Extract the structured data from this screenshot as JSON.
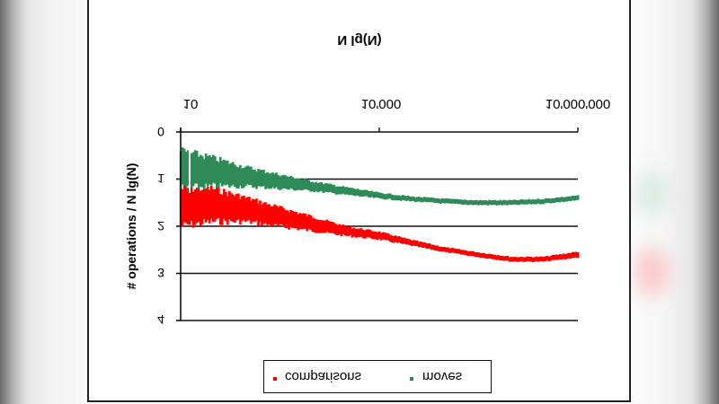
{
  "chart_data": {
    "type": "line",
    "orientation_note": "image rendered vertically flipped",
    "title": "N lg(N)",
    "xlabel": "",
    "ylabel": "# operations / N lg(N)",
    "x_scale": "log",
    "x_ticks": [
      "10",
      "10'000",
      "10'000'000"
    ],
    "y_ticks": [
      "0",
      "1",
      "2",
      "3",
      "4"
    ],
    "ylim": [
      0,
      4
    ],
    "xlim": [
      10,
      10000000
    ],
    "grid": {
      "horizontal": true,
      "vertical": false
    },
    "legend_position": "bottom",
    "x": [
      10,
      30,
      100,
      300,
      1000,
      3000,
      10000,
      30000,
      100000,
      300000,
      1000000,
      3000000,
      10000000
    ],
    "series": [
      {
        "name": "comparisons",
        "color": "#ff0000",
        "values": [
          1.6,
          1.55,
          1.65,
          1.8,
          1.95,
          2.1,
          2.2,
          2.35,
          2.5,
          2.6,
          2.7,
          2.7,
          2.6
        ],
        "spread": [
          0.4,
          0.35,
          0.25,
          0.2,
          0.15,
          0.1,
          0.08,
          0.06,
          0.05,
          0.05,
          0.05,
          0.05,
          0.06
        ]
      },
      {
        "name": "moves",
        "color": "#2e8b57",
        "values": [
          0.8,
          0.85,
          0.95,
          1.05,
          1.15,
          1.25,
          1.35,
          1.42,
          1.47,
          1.5,
          1.5,
          1.47,
          1.4
        ],
        "spread": [
          0.4,
          0.3,
          0.2,
          0.15,
          0.1,
          0.08,
          0.06,
          0.05,
          0.05,
          0.05,
          0.05,
          0.05,
          0.05
        ]
      }
    ]
  },
  "legend": {
    "items": [
      {
        "label": "comparisons",
        "color": "#ff0000"
      },
      {
        "label": "moves",
        "color": "#2e8b57"
      }
    ]
  }
}
